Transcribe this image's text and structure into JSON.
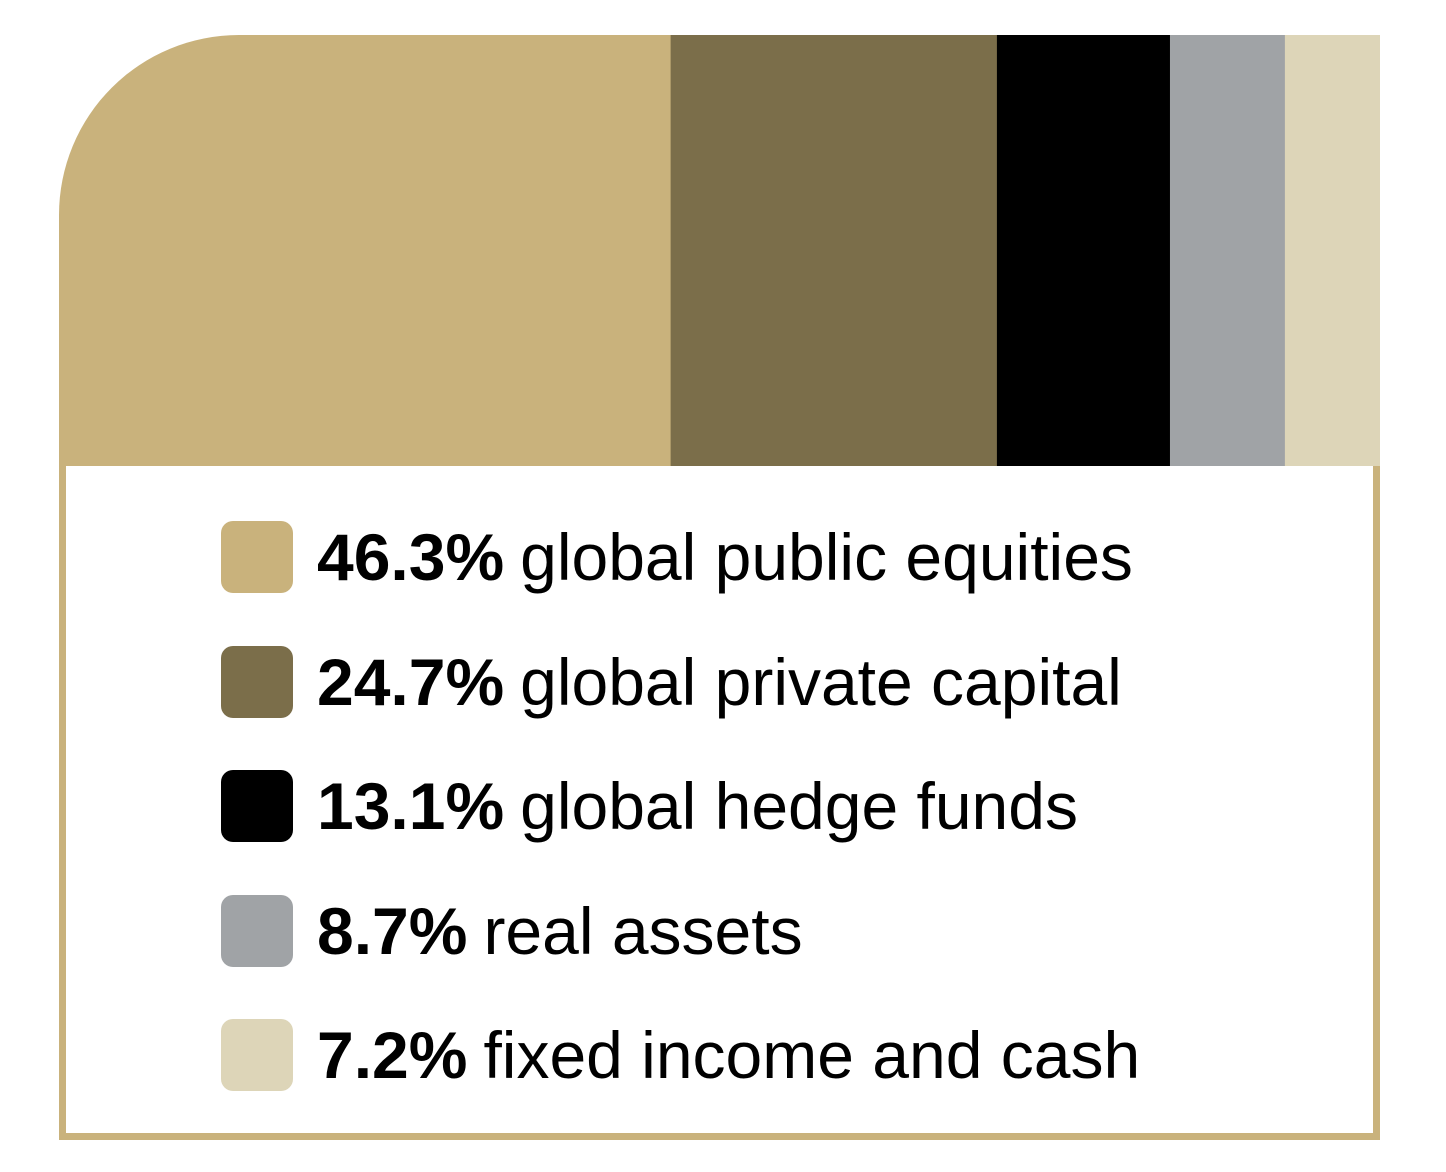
{
  "chart_data": {
    "type": "bar",
    "orientation": "horizontal-stacked",
    "title": "",
    "categories": [
      "global public equities",
      "global private capital",
      "global hedge funds",
      "real assets",
      "fixed income and cash"
    ],
    "values": [
      46.3,
      24.7,
      13.1,
      8.7,
      7.2
    ],
    "unit": "%",
    "colors": [
      "#c9b27c",
      "#7b6e4a",
      "#000000",
      "#a0a3a6",
      "#ddd5b8"
    ],
    "legend": [
      {
        "value": "46.3%",
        "label": "global public equities",
        "color": "#c9b27c"
      },
      {
        "value": "24.7%",
        "label": "global private capital",
        "color": "#7b6e4a"
      },
      {
        "value": "13.1%",
        "label": "global hedge funds",
        "color": "#000000"
      },
      {
        "value": "8.7%",
        "label": "real assets",
        "color": "#a0a3a6"
      },
      {
        "value": "7.2%",
        "label": "fixed income and cash",
        "color": "#ddd5b8"
      }
    ],
    "legend_placement": "below",
    "grid": false
  }
}
